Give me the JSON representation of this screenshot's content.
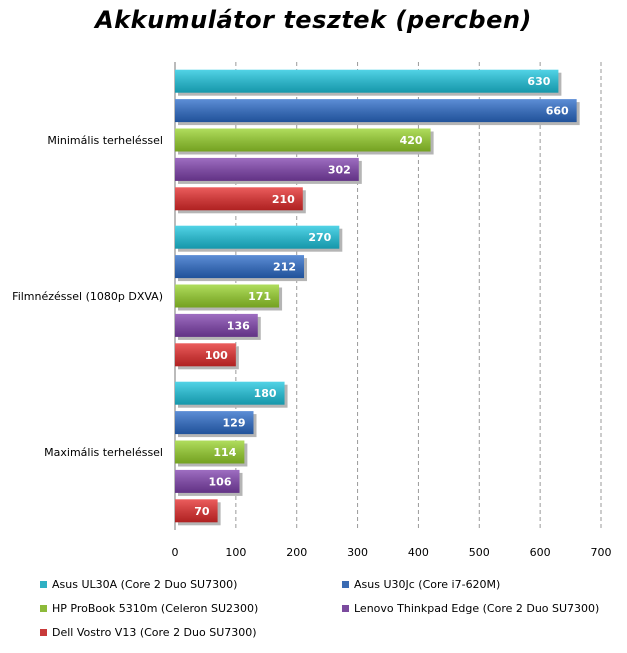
{
  "chart_data": {
    "type": "bar",
    "orientation": "horizontal",
    "title": "Akkumulátor tesztek (percben)",
    "xlabel": "",
    "ylabel": "",
    "xlim": [
      0,
      700
    ],
    "x_ticks": [
      0,
      100,
      200,
      300,
      400,
      500,
      600,
      700
    ],
    "grid": "vertical dashed",
    "legend_position": "bottom",
    "categories": [
      "Minimális terheléssel",
      "Filmnézéssel (1080p DXVA)",
      "Maximális terheléssel"
    ],
    "series": [
      {
        "name": "Asus UL30A (Core 2 Duo SU7300)",
        "color": "#2fb0c3",
        "values": [
          630,
          270,
          180
        ]
      },
      {
        "name": "Asus U30Jc (Core i7-620M)",
        "color": "#3a6bb3",
        "values": [
          660,
          212,
          129
        ]
      },
      {
        "name": "HP ProBook 5310m (Celeron SU2300)",
        "color": "#8dba3a",
        "values": [
          420,
          171,
          114
        ]
      },
      {
        "name": "Lenovo Thinkpad Edge (Core 2 Duo SU7300)",
        "color": "#7b4b9e",
        "values": [
          302,
          136,
          106
        ]
      },
      {
        "name": "Dell Vostro V13 (Core 2 Duo SU7300)",
        "color": "#c83a3a",
        "values": [
          210,
          100,
          70
        ]
      }
    ]
  }
}
